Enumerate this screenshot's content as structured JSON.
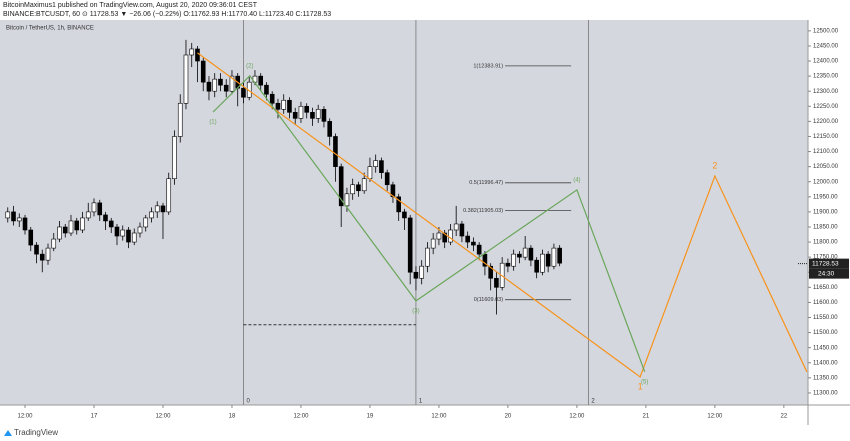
{
  "header": {
    "line1": "BitcoinMaximus1 published on TradingView.com, August 20, 2020 09:36:01 CEST",
    "line2": "BINANCE:BTCUSDT, 60 ⊙ 11728.53 ▼ −26.06 (−0.22%) O:11762.93 H:11770.40 L:11723.40 C:11728.53"
  },
  "footer": {
    "brand": "TradingView"
  },
  "chart_data": {
    "type": "candlestick",
    "title": "Bitcoin / TetherUS, 1h, BINANCE",
    "up_color": "#ffffff",
    "down_color": "#000000",
    "border_color": "#000000",
    "xlim": [
      -4.35,
      136.2
    ],
    "ylim": [
      11260,
      12536
    ],
    "xticks": [
      {
        "value": 0,
        "label": "12:00"
      },
      {
        "value": 12,
        "label": "17"
      },
      {
        "value": 24,
        "label": "12:00"
      },
      {
        "value": 36,
        "label": "18"
      },
      {
        "value": 48,
        "label": "12:00"
      },
      {
        "value": 60,
        "label": "19"
      },
      {
        "value": 72,
        "label": "12:00"
      },
      {
        "value": 84,
        "label": "20"
      },
      {
        "value": 96,
        "label": "12:00"
      },
      {
        "value": 108,
        "label": "21"
      },
      {
        "value": 120,
        "label": "12:00"
      },
      {
        "value": 132,
        "label": "22"
      }
    ],
    "yticks": [
      {
        "value": 11300,
        "label": "11300.00"
      },
      {
        "value": 11350,
        "label": "11350.00"
      },
      {
        "value": 11400,
        "label": "11400.00"
      },
      {
        "value": 11450,
        "label": "11450.00"
      },
      {
        "value": 11500,
        "label": "11500.00"
      },
      {
        "value": 11550,
        "label": "11550.00"
      },
      {
        "value": 11600,
        "label": "11600.00"
      },
      {
        "value": 11650,
        "label": "11650.00"
      },
      {
        "value": 11700,
        "label": "11700.00"
      },
      {
        "value": 11750,
        "label": "11750.00"
      },
      {
        "value": 11800,
        "label": "11800.00"
      },
      {
        "value": 11850,
        "label": "11850.00"
      },
      {
        "value": 11900,
        "label": "11900.00"
      },
      {
        "value": 11950,
        "label": "11950.00"
      },
      {
        "value": 12000,
        "label": "12000.00"
      },
      {
        "value": 12050,
        "label": "12050.00"
      },
      {
        "value": 12100,
        "label": "12100.00"
      },
      {
        "value": 12150,
        "label": "12150.00"
      },
      {
        "value": 12200,
        "label": "12200.00"
      },
      {
        "value": 12250,
        "label": "12250.00"
      },
      {
        "value": 12300,
        "label": "12300.00"
      },
      {
        "value": 12350,
        "label": "12350.00"
      },
      {
        "value": 12400,
        "label": "12400.00"
      },
      {
        "value": 12450,
        "label": "12450.00"
      },
      {
        "value": 12500,
        "label": "12500.00"
      }
    ],
    "x": [
      -3,
      -2,
      -1,
      0,
      1,
      2,
      3,
      4,
      5,
      6,
      7,
      8,
      9,
      10,
      11,
      12,
      13,
      14,
      15,
      16,
      17,
      18,
      19,
      20,
      21,
      22,
      23,
      24,
      25,
      26,
      27,
      28,
      29,
      30,
      31,
      32,
      33,
      34,
      35,
      36,
      37,
      38,
      39,
      40,
      41,
      42,
      43,
      44,
      45,
      46,
      47,
      48,
      49,
      50,
      51,
      52,
      53,
      54,
      55,
      56,
      57,
      58,
      59,
      60,
      61,
      62,
      63,
      64,
      65,
      66,
      67,
      68,
      69,
      70,
      71,
      72,
      73,
      74,
      75,
      76,
      77,
      78,
      79,
      80,
      81,
      82,
      83,
      84,
      85,
      86,
      87,
      88,
      89,
      90,
      91,
      92,
      93
    ],
    "candles": [
      [
        11880,
        11915,
        11865,
        11900
      ],
      [
        11900,
        11920,
        11855,
        11870
      ],
      [
        11870,
        11895,
        11850,
        11880
      ],
      [
        11880,
        11890,
        11825,
        11840
      ],
      [
        11840,
        11850,
        11770,
        11790
      ],
      [
        11790,
        11800,
        11730,
        11760
      ],
      [
        11760,
        11775,
        11700,
        11740
      ],
      [
        11740,
        11795,
        11725,
        11780
      ],
      [
        11780,
        11830,
        11770,
        11810
      ],
      [
        11810,
        11870,
        11800,
        11850
      ],
      [
        11850,
        11860,
        11815,
        11830
      ],
      [
        11830,
        11890,
        11820,
        11870
      ],
      [
        11870,
        11880,
        11825,
        11840
      ],
      [
        11840,
        11900,
        11830,
        11880
      ],
      [
        11880,
        11930,
        11870,
        11900
      ],
      [
        11900,
        11945,
        11885,
        11930
      ],
      [
        11930,
        11940,
        11870,
        11890
      ],
      [
        11890,
        11900,
        11840,
        11870
      ],
      [
        11870,
        11880,
        11830,
        11850
      ],
      [
        11850,
        11860,
        11790,
        11820
      ],
      [
        11820,
        11855,
        11805,
        11840
      ],
      [
        11840,
        11850,
        11780,
        11800
      ],
      [
        11800,
        11845,
        11790,
        11830
      ],
      [
        11830,
        11865,
        11815,
        11850
      ],
      [
        11850,
        11890,
        11835,
        11880
      ],
      [
        11880,
        11915,
        11865,
        11900
      ],
      [
        11900,
        11935,
        11880,
        11920
      ],
      [
        11920,
        11930,
        11810,
        11900
      ],
      [
        11900,
        12030,
        11890,
        12010
      ],
      [
        12010,
        12170,
        11990,
        12150
      ],
      [
        12150,
        12290,
        12130,
        12260
      ],
      [
        12260,
        12470,
        12240,
        12420
      ],
      [
        12420,
        12460,
        12380,
        12440
      ],
      [
        12440,
        12450,
        12330,
        12400
      ],
      [
        12400,
        12410,
        12300,
        12330
      ],
      [
        12330,
        12350,
        12270,
        12300
      ],
      [
        12300,
        12360,
        12280,
        12340
      ],
      [
        12340,
        12360,
        12300,
        12320
      ],
      [
        12320,
        12340,
        12280,
        12300
      ],
      [
        12300,
        12370,
        12290,
        12350
      ],
      [
        12350,
        12360,
        12250,
        12310
      ],
      [
        12310,
        12330,
        12260,
        12280
      ],
      [
        12280,
        12350,
        12270,
        12330
      ],
      [
        12330,
        12370,
        12320,
        12350
      ],
      [
        12350,
        12360,
        12300,
        12320
      ],
      [
        12320,
        12330,
        12270,
        12290
      ],
      [
        12290,
        12300,
        12240,
        12260
      ],
      [
        12260,
        12275,
        12210,
        12240
      ],
      [
        12240,
        12290,
        12225,
        12270
      ],
      [
        12270,
        12280,
        12210,
        12230
      ],
      [
        12230,
        12245,
        12190,
        12210
      ],
      [
        12210,
        12265,
        12195,
        12250
      ],
      [
        12250,
        12260,
        12210,
        12230
      ],
      [
        12230,
        12245,
        12185,
        12210
      ],
      [
        12210,
        12255,
        12195,
        12240
      ],
      [
        12240,
        12250,
        12180,
        12200
      ],
      [
        12200,
        12210,
        12120,
        12150
      ],
      [
        12150,
        12160,
        12000,
        12050
      ],
      [
        12050,
        12060,
        11850,
        11920
      ],
      [
        11920,
        11980,
        11900,
        11960
      ],
      [
        11960,
        12010,
        11940,
        11990
      ],
      [
        11990,
        12000,
        11950,
        11970
      ],
      [
        11970,
        12030,
        11960,
        12010
      ],
      [
        12010,
        12080,
        12000,
        12050
      ],
      [
        12050,
        12090,
        12030,
        12070
      ],
      [
        12070,
        12080,
        12010,
        12030
      ],
      [
        12030,
        12040,
        11970,
        11990
      ],
      [
        11990,
        12000,
        11930,
        11950
      ],
      [
        11950,
        11960,
        11870,
        11900
      ],
      [
        11900,
        11910,
        11840,
        11880
      ],
      [
        11880,
        11890,
        11660,
        11700
      ],
      [
        11700,
        11720,
        11640,
        11680
      ],
      [
        11680,
        11740,
        11660,
        11720
      ],
      [
        11720,
        11800,
        11700,
        11780
      ],
      [
        11780,
        11830,
        11760,
        11810
      ],
      [
        11810,
        11850,
        11790,
        11830
      ],
      [
        11830,
        11840,
        11780,
        11800
      ],
      [
        11800,
        11860,
        11790,
        11840
      ],
      [
        11840,
        11920,
        11820,
        11860
      ],
      [
        11860,
        11870,
        11800,
        11820
      ],
      [
        11820,
        11835,
        11780,
        11800
      ],
      [
        11800,
        11815,
        11770,
        11790
      ],
      [
        11790,
        11800,
        11740,
        11760
      ],
      [
        11760,
        11770,
        11690,
        11720
      ],
      [
        11720,
        11730,
        11640,
        11680
      ],
      [
        11680,
        11700,
        11560,
        11650
      ],
      [
        11650,
        11750,
        11640,
        11730
      ],
      [
        11730,
        11745,
        11700,
        11720
      ],
      [
        11720,
        11775,
        11705,
        11760
      ],
      [
        11760,
        11770,
        11730,
        11750
      ],
      [
        11750,
        11820,
        11740,
        11780
      ],
      [
        11780,
        11790,
        11720,
        11740
      ],
      [
        11740,
        11750,
        11680,
        11700
      ],
      [
        11700,
        11775,
        11690,
        11760
      ],
      [
        11760,
        11770,
        11700,
        11720
      ],
      [
        11720,
        11795,
        11710,
        11780
      ],
      [
        11780,
        11790,
        11720,
        11730
      ]
    ],
    "last_price": {
      "value": 11728.53,
      "label": "11728.53",
      "countdown": "24:30"
    },
    "vertical_lines": [
      {
        "x": 38,
        "label": "0"
      },
      {
        "x": 68,
        "label": "1"
      },
      {
        "x": 98,
        "label": "2"
      }
    ],
    "dashed_level": {
      "value": 11526,
      "x": [
        38,
        68
      ]
    },
    "fib_x": [
      83.5,
      95
    ],
    "fib_levels": [
      {
        "value": 12383.91,
        "label": "1(12383.91)"
      },
      {
        "value": 11996.47,
        "label": "0.5(11996.47)"
      },
      {
        "value": 11905.03,
        "label": "0.382(11905.03)"
      },
      {
        "value": 11609.03,
        "label": "0(11609.03)"
      }
    ],
    "waves": [
      {
        "color": "#f7931a",
        "x": [
          30,
          107,
          120,
          136
        ],
        "y": [
          12427,
          11353,
          12019,
          11370
        ],
        "labels": [
          null,
          "1",
          "2",
          null
        ]
      },
      {
        "color": "#6aa75a",
        "x": [
          32.7,
          39.1,
          68,
          96,
          107.8
        ],
        "y": [
          12231,
          12351,
          11605,
          11973,
          11370
        ],
        "labels": [
          "(1)",
          "(2)",
          "(3)",
          "(4)",
          "(5)"
        ]
      }
    ]
  }
}
